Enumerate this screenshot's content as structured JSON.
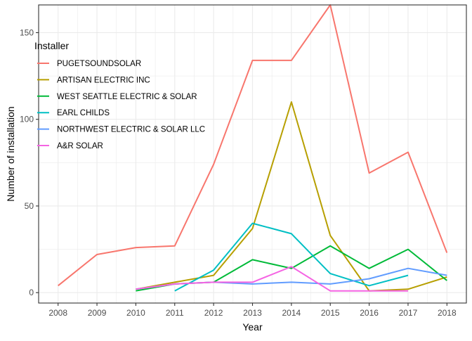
{
  "chart_data": {
    "type": "line",
    "xlabel": "Year",
    "ylabel": "Number of installation",
    "x": [
      2008,
      2009,
      2010,
      2011,
      2012,
      2013,
      2014,
      2015,
      2016,
      2017,
      2018
    ],
    "xlim": [
      2007.5,
      2018.5
    ],
    "ylim": [
      -6,
      166
    ],
    "yticks": [
      0,
      50,
      100,
      150
    ],
    "grid": true,
    "legend": {
      "title": "Installer",
      "placement": "top-left"
    },
    "series": [
      {
        "name": "PUGETSOUNDSOLAR",
        "color": "#F8766D",
        "x": [
          2008,
          2009,
          2010,
          2011,
          2012,
          2013,
          2014,
          2015,
          2016,
          2017,
          2018
        ],
        "values": [
          4,
          22,
          26,
          27,
          74,
          134,
          134,
          166,
          69,
          81,
          23
        ]
      },
      {
        "name": "ARTISAN ELECTRIC INC",
        "color": "#B79F00",
        "x": [
          2010,
          2011,
          2012,
          2013,
          2014,
          2015,
          2016,
          2017,
          2018
        ],
        "values": [
          2,
          6,
          10,
          37,
          110,
          33,
          1,
          2,
          9
        ]
      },
      {
        "name": "WEST SEATTLE ELECTRIC & SOLAR",
        "color": "#00BA38",
        "x": [
          2010,
          2011,
          2012,
          2013,
          2014,
          2015,
          2016,
          2017,
          2018
        ],
        "values": [
          1,
          5,
          6,
          19,
          14,
          27,
          14,
          25,
          7
        ]
      },
      {
        "name": "EARL CHILDS",
        "color": "#00BFC4",
        "x": [
          2011,
          2012,
          2013,
          2014,
          2015,
          2016,
          2017
        ],
        "values": [
          1,
          13,
          40,
          34,
          11,
          4,
          10
        ]
      },
      {
        "name": "NORTHWEST ELECTRIC & SOLAR LLC",
        "color": "#619CFF",
        "x": [
          2010,
          2011,
          2012,
          2013,
          2014,
          2015,
          2016,
          2017,
          2018
        ],
        "values": [
          2,
          5,
          6,
          5,
          6,
          5,
          8,
          14,
          10
        ]
      },
      {
        "name": "A&R SOLAR",
        "color": "#F564E3",
        "x": [
          2010,
          2011,
          2012,
          2013,
          2014,
          2015,
          2016,
          2017
        ],
        "values": [
          2,
          5,
          6,
          6,
          15,
          1,
          1,
          1
        ]
      }
    ]
  }
}
